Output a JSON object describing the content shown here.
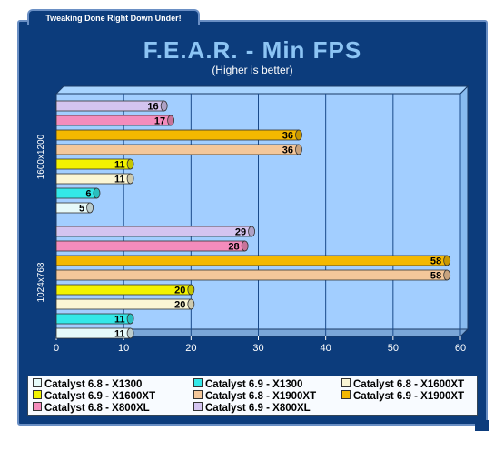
{
  "banner": "Tweaking Done Right Down Under!",
  "chart_data": {
    "type": "bar",
    "orientation": "horizontal",
    "title": "F.E.A.R. - Min FPS",
    "subtitle": "(Higher is better)",
    "categories": [
      "1600x1200",
      "1024x768"
    ],
    "xlim": [
      0,
      60
    ],
    "xticks": [
      0,
      10,
      20,
      30,
      40,
      50,
      60
    ],
    "grid": true,
    "legend_position": "bottom",
    "series": [
      {
        "name": "Catalyst 6.8 - X1300",
        "color": "#e6fafa",
        "values": [
          5,
          11
        ]
      },
      {
        "name": "Catalyst 6.9 - X1300",
        "color": "#33e8e8",
        "values": [
          6,
          11
        ]
      },
      {
        "name": "Catalyst 6.8 - X1600XT",
        "color": "#fbf6d4",
        "values": [
          11,
          20
        ]
      },
      {
        "name": "Catalyst 6.9 - X1600XT",
        "color": "#f2f200",
        "values": [
          11,
          20
        ]
      },
      {
        "name": "Catalyst 6.8 - X1900XT",
        "color": "#f4c79a",
        "values": [
          36,
          58
        ]
      },
      {
        "name": "Catalyst 6.9 - X1900XT",
        "color": "#f4b800",
        "values": [
          36,
          58
        ]
      },
      {
        "name": "Catalyst 6.8 - X800XL",
        "color": "#f48cbc",
        "values": [
          17,
          28
        ]
      },
      {
        "name": "Catalyst 6.9 - X800XL",
        "color": "#d4c4f0",
        "values": [
          16,
          29
        ]
      }
    ]
  }
}
